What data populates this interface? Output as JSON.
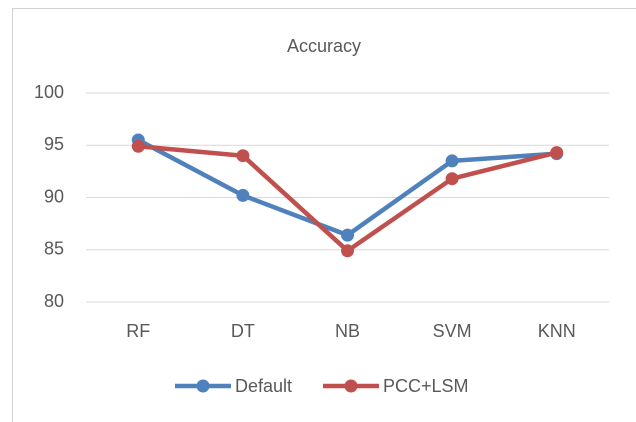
{
  "chart_data": {
    "type": "line",
    "title": "Accuracy",
    "categories": [
      "RF",
      "DT",
      "NB",
      "SVM",
      "KNN"
    ],
    "series": [
      {
        "name": "Default",
        "color": "#4f81bd",
        "values": [
          95.5,
          90.2,
          86.4,
          93.5,
          94.2
        ]
      },
      {
        "name": "PCC+LSM",
        "color": "#c0504d",
        "values": [
          94.9,
          94.0,
          84.9,
          91.8,
          94.3
        ]
      }
    ],
    "ylim": [
      80,
      100
    ],
    "yticks": [
      80,
      85,
      90,
      95,
      100
    ],
    "grid": true,
    "legend": "bottom"
  }
}
